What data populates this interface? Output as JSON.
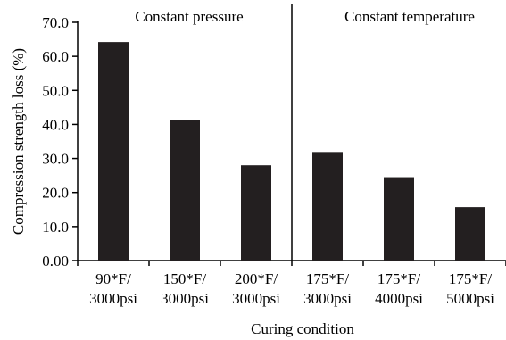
{
  "chart_data": {
    "type": "bar",
    "categories": [
      [
        "90*F/",
        "3000psi"
      ],
      [
        "150*F/",
        "3000psi"
      ],
      [
        "200*F/",
        "3000psi"
      ],
      [
        "175*F/",
        "3000psi"
      ],
      [
        "175*F/",
        "4000psi"
      ],
      [
        "175*F/",
        "5000psi"
      ]
    ],
    "values": [
      64.2,
      41.3,
      28.0,
      31.9,
      24.5,
      15.7
    ],
    "xlabel": "Curing condition",
    "ylabel": "Compression strength loss (%)",
    "ylim": [
      0,
      70
    ],
    "yticks": [
      "0.00",
      "10.0",
      "20.0",
      "30.0",
      "40.0",
      "50.0",
      "60.0",
      "70.0"
    ],
    "ytick_values": [
      0,
      10,
      20,
      30,
      40,
      50,
      60,
      70
    ],
    "group_labels": [
      "Constant pressure",
      "Constant temperature"
    ],
    "divider_after_index": 2,
    "bar_color": "#231f20",
    "grid": false,
    "legend": "none"
  }
}
